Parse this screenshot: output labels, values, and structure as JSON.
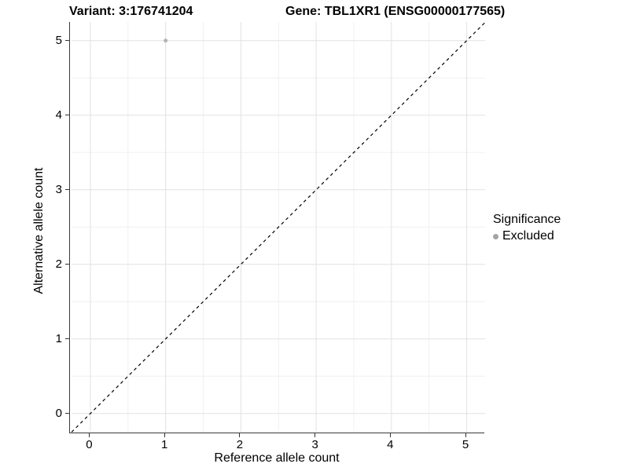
{
  "chart_data": {
    "type": "scatter",
    "titles": [
      "Variant: 3:176741204",
      "Gene: TBL1XR1 (ENSG00000177565)"
    ],
    "xlabel": "Reference allele count",
    "ylabel": "Alternative allele count",
    "xlim": [
      -0.25,
      5.25
    ],
    "ylim": [
      -0.25,
      5.25
    ],
    "x_ticks": [
      0,
      1,
      2,
      3,
      4,
      5
    ],
    "y_ticks": [
      0,
      1,
      2,
      3,
      4,
      5
    ],
    "grid": {
      "major": true,
      "minor": true,
      "major_color": "#e2e2e2",
      "minor_color": "#f0f0f0"
    },
    "identity_line": {
      "style": "dashed",
      "color": "#000000",
      "from": [
        -0.25,
        -0.25
      ],
      "to": [
        5.25,
        5.25
      ]
    },
    "series": [
      {
        "name": "Excluded",
        "color": "#b3b3b3",
        "point_radius": 2.5,
        "points": [
          [
            1,
            5
          ]
        ]
      }
    ],
    "legend": {
      "title": "Significance",
      "position": "right",
      "entries": [
        {
          "label": "Excluded",
          "color": "#a3a3a3"
        }
      ]
    }
  }
}
